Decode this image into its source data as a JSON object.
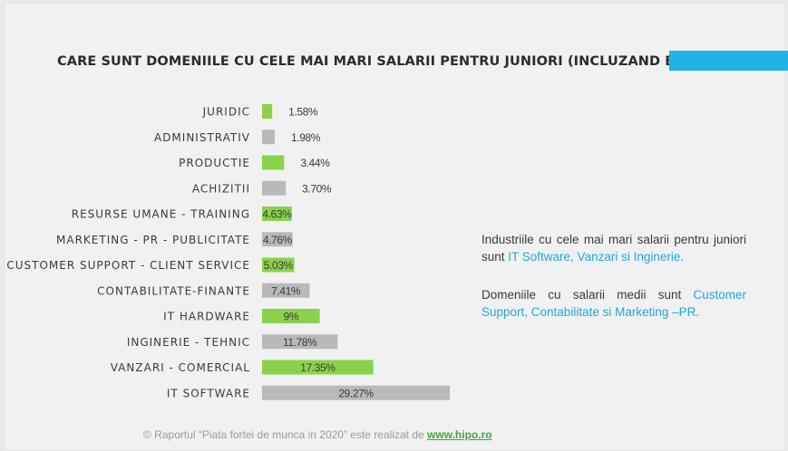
{
  "title": "CARE SUNT DOMENIILE CU CELE MAI MARI SALARII PENTRU JUNIORI (INCLUZAND BONUSURI)?",
  "colors": {
    "accent": "#1fb3e8",
    "green": "#8ad24a",
    "gray": "#b9b9b9"
  },
  "side_text_1": {
    "before": "Industriile cu cele mai mari salarii pentru juniori sunt ",
    "highlight": "IT Software, Vanzari si Inginerie."
  },
  "side_text_2": {
    "before": "Domeniile cu salarii medii sunt ",
    "highlight": "Customer Support, Contabilitate si Marketing –PR."
  },
  "footer": {
    "text": "© Raportul “Piata fortei de munca in 2020” este realizat de ",
    "link": "www.hipo.ro"
  },
  "chart_data": {
    "type": "bar",
    "orientation": "horizontal",
    "title": "CARE SUNT DOMENIILE CU CELE MAI MARI SALARII PENTRU JUNIORI (INCLUZAND BONUSURI)?",
    "categories": [
      "JURIDIC",
      "ADMINISTRATIV",
      "PRODUCTIE",
      "ACHIZITII",
      "RESURSE UMANE - TRAINING",
      "MARKETING - PR - PUBLICITATE",
      "CUSTOMER SUPPORT - CLIENT SERVICE",
      "CONTABILITATE-FINANTE",
      "IT HARDWARE",
      "INGINERIE - TEHNIC",
      "VANZARI - COMERCIAL",
      "IT SOFTWARE"
    ],
    "values": [
      1.58,
      1.98,
      3.44,
      3.7,
      4.63,
      4.76,
      5.03,
      7.41,
      9,
      11.78,
      17.35,
      29.27
    ],
    "labels": [
      "1.58%",
      "1.98%",
      "3.44%",
      "3.70%",
      "4.63%",
      "4.76%",
      "5.03%",
      "7.41%",
      "9%",
      "11.78%",
      "17.35%",
      "29.27%"
    ],
    "bar_colors": [
      "#8ad24a",
      "#b9b9b9",
      "#8ad24a",
      "#b9b9b9",
      "#8ad24a",
      "#b9b9b9",
      "#8ad24a",
      "#b9b9b9",
      "#8ad24a",
      "#b9b9b9",
      "#8ad24a",
      "#b9b9b9"
    ],
    "grid": false,
    "legend": "none"
  }
}
